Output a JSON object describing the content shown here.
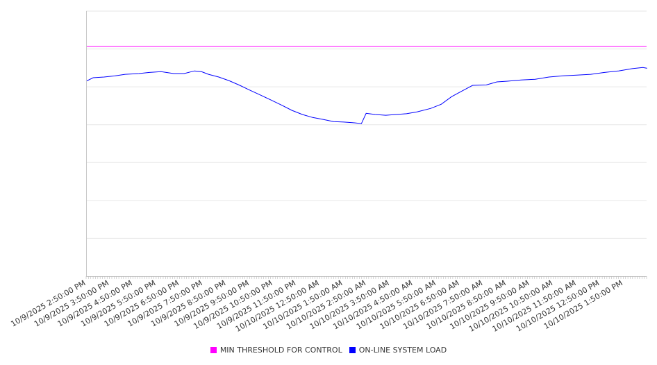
{
  "chart_data": {
    "type": "line",
    "title": "",
    "xlabel": "",
    "ylabel": "",
    "ylim": [
      0,
      7
    ],
    "y_gridlines": 7,
    "grid": true,
    "legend_placement": "bottom",
    "x_unit": "hours since 10/9/2025 2:50:00 PM",
    "xlim": [
      0,
      24
    ],
    "x_tick_labels": [
      "10/9/2025 2:50:00 PM",
      "10/9/2025 3:50:00 PM",
      "10/9/2025 4:50:00 PM",
      "10/9/2025 5:50:00 PM",
      "10/9/2025 6:50:00 PM",
      "10/9/2025 7:50:00 PM",
      "10/9/2025 8:50:00 PM",
      "10/9/2025 9:50:00 PM",
      "10/9/2025 10:50:00 PM",
      "10/9/2025 11:50:00 PM",
      "10/10/2025 12:50:00 AM",
      "10/10/2025 1:50:00 AM",
      "10/10/2025 2:50:00 AM",
      "10/10/2025 3:50:00 AM",
      "10/10/2025 4:50:00 AM",
      "10/10/2025 5:50:00 AM",
      "10/10/2025 6:50:00 AM",
      "10/10/2025 7:50:00 AM",
      "10/10/2025 8:50:00 AM",
      "10/10/2025 9:50:00 AM",
      "10/10/2025 10:50:00 AM",
      "10/10/2025 11:50:00 AM",
      "10/10/2025 12:50:00 PM",
      "10/10/2025 1:50:00 PM"
    ],
    "series": [
      {
        "name": "MIN THRESHOLD FOR CONTROL",
        "color": "#ff00ff",
        "x": [
          0,
          24
        ],
        "y": [
          6.07,
          6.07
        ]
      },
      {
        "name": "ON-LINE SYSTEM LOAD",
        "color": "#0000ff",
        "x": [
          0,
          0.3,
          0.77,
          1.25,
          1.67,
          2.26,
          2.71,
          3.21,
          3.75,
          4.2,
          4.64,
          4.94,
          5.24,
          5.68,
          6.13,
          6.58,
          7.02,
          7.47,
          7.92,
          8.36,
          8.81,
          9.26,
          9.7,
          10.15,
          10.6,
          11.04,
          11.49,
          11.79,
          11.99,
          12.38,
          12.83,
          13.27,
          13.72,
          14.17,
          14.76,
          15.21,
          15.65,
          16.1,
          16.55,
          17.14,
          17.59,
          18.04,
          18.63,
          19.23,
          19.82,
          20.42,
          21.01,
          21.61,
          22.2,
          22.8,
          23.39,
          23.84,
          24.02
        ],
        "y": [
          5.15,
          5.24,
          5.26,
          5.29,
          5.33,
          5.35,
          5.38,
          5.4,
          5.35,
          5.35,
          5.42,
          5.4,
          5.33,
          5.26,
          5.16,
          5.04,
          4.91,
          4.78,
          4.65,
          4.52,
          4.38,
          4.27,
          4.19,
          4.14,
          4.08,
          4.07,
          4.05,
          4.03,
          4.3,
          4.27,
          4.25,
          4.27,
          4.29,
          4.34,
          4.43,
          4.54,
          4.74,
          4.89,
          5.04,
          5.05,
          5.13,
          5.15,
          5.18,
          5.2,
          5.26,
          5.29,
          5.31,
          5.33,
          5.38,
          5.42,
          5.48,
          5.51,
          5.49
        ]
      }
    ]
  }
}
